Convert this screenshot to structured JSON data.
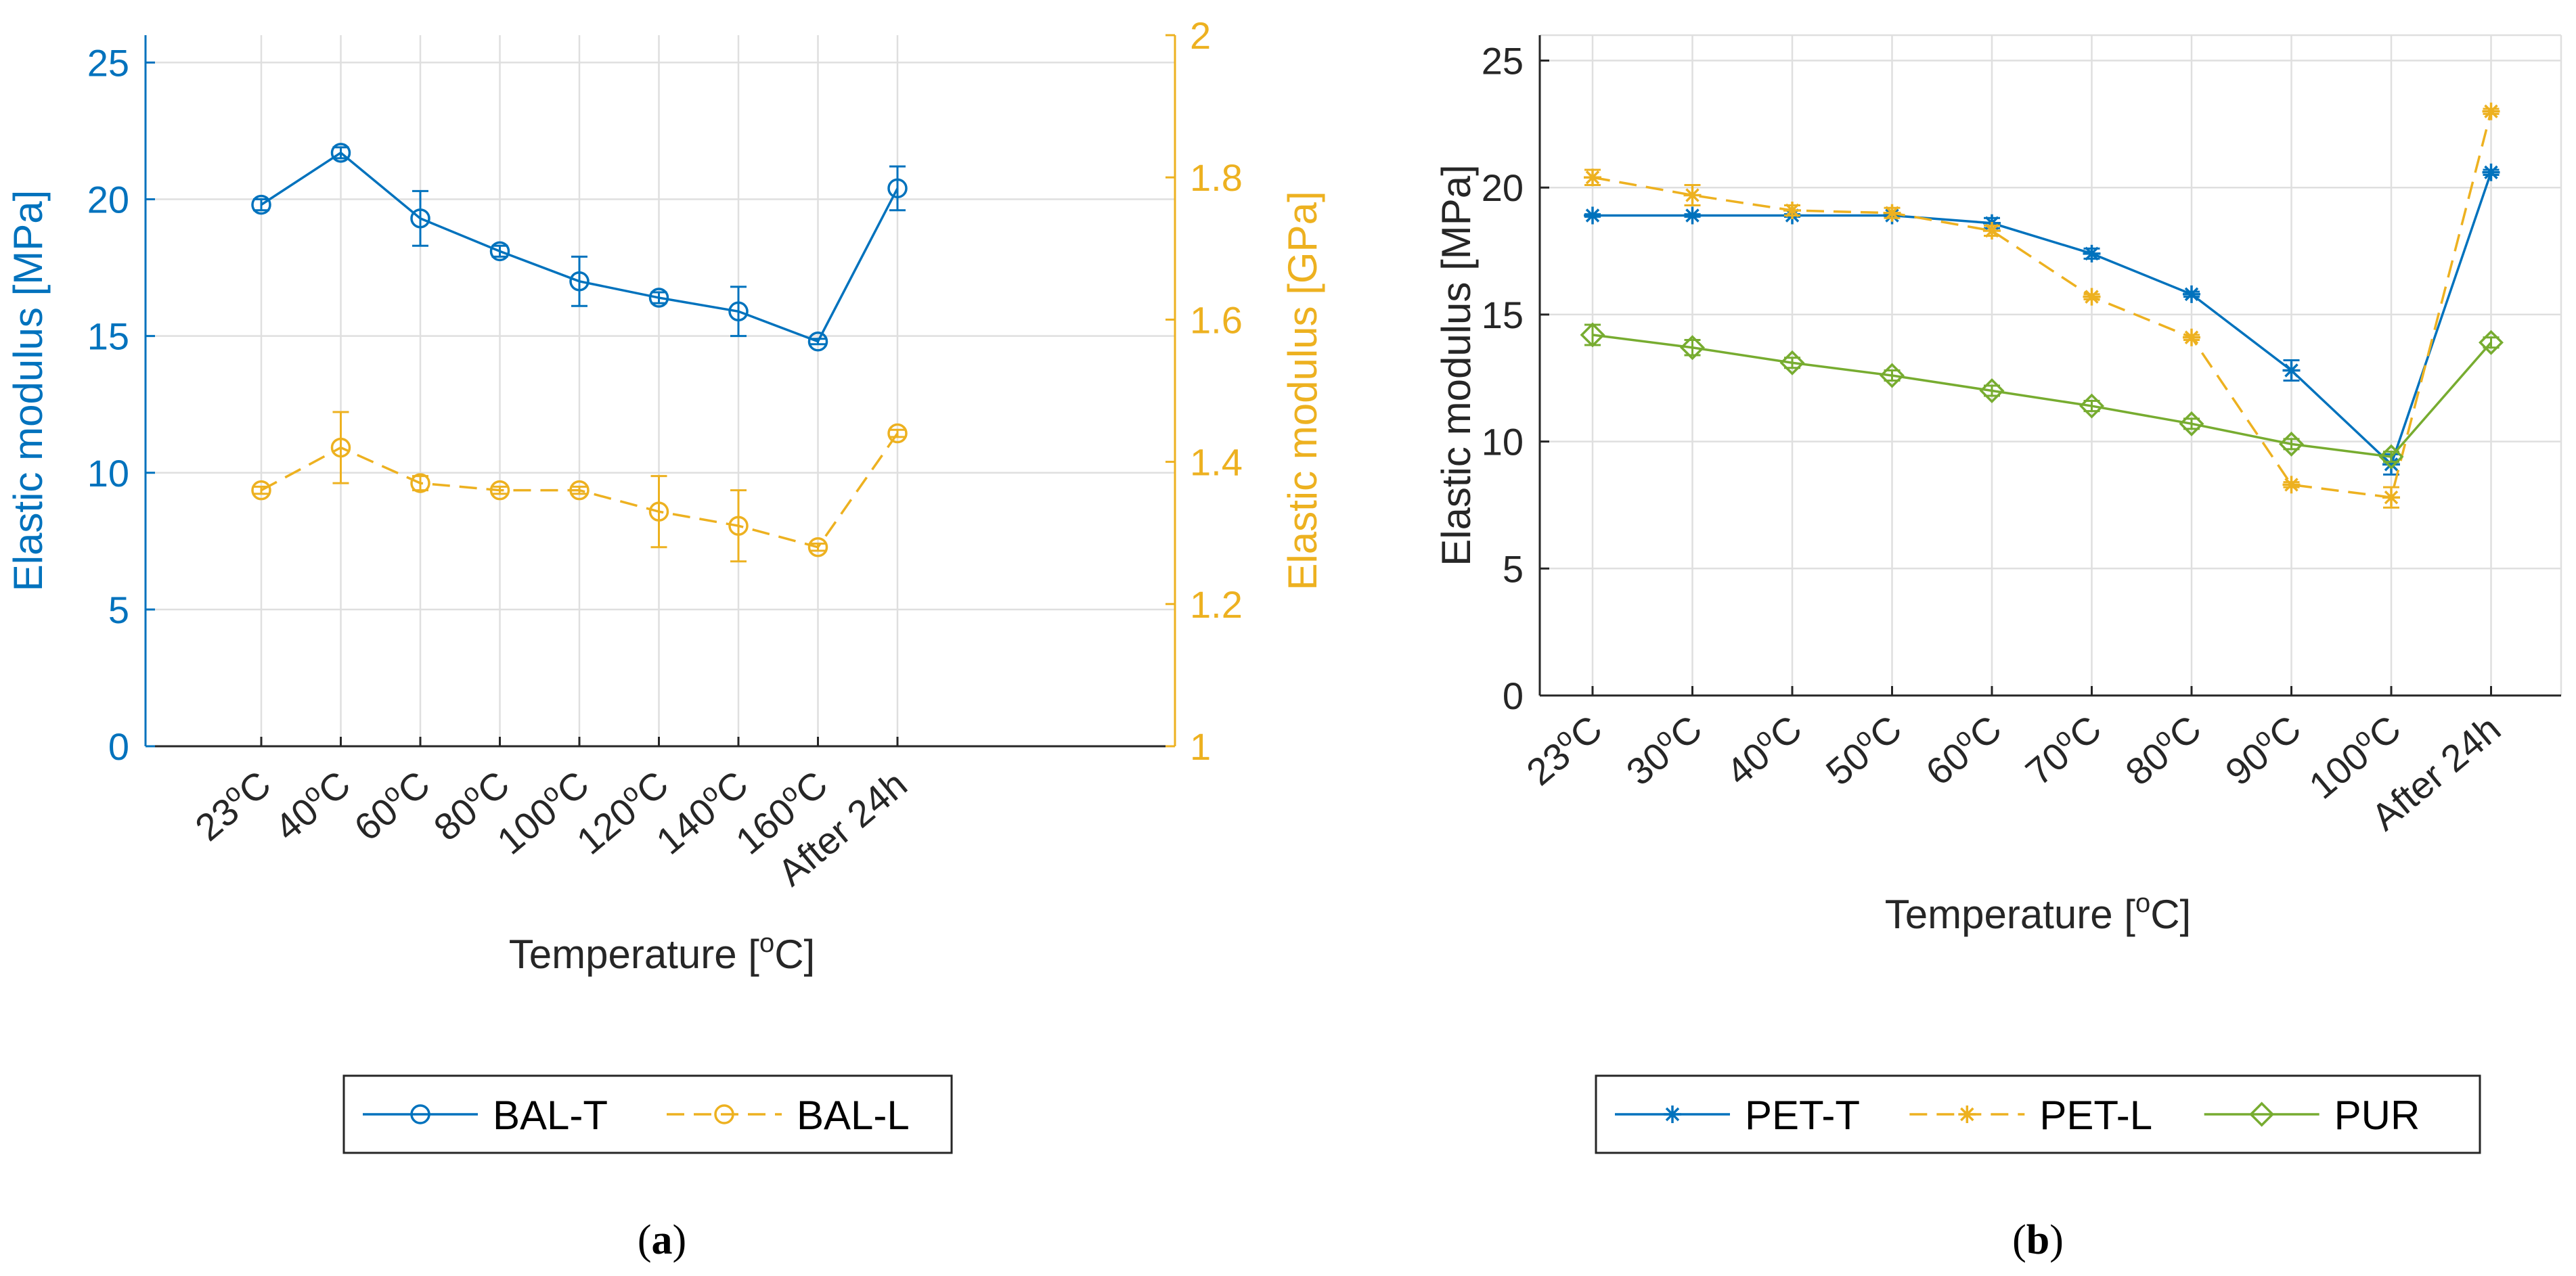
{
  "colors": {
    "blue": "#0072BD",
    "orange": "#EDB120",
    "green": "#77AC30",
    "axis": "#262626",
    "grid": "#DFDFDF",
    "caption": "#000000"
  },
  "chart_data": [
    {
      "id": "a",
      "type": "line",
      "caption": "(a)",
      "caption_letter": "a",
      "xlabel_main": "Temperature [",
      "xlabel_sup": "o",
      "xlabel_end": "C]",
      "ylabel_left": "Elastic modulus [MPa]",
      "ylabel_right": "Elastic modulus [GPa]",
      "ylim_left": [
        0,
        26
      ],
      "ylim_right": [
        1,
        2
      ],
      "yticks_left": [
        "0",
        "5",
        "10",
        "15",
        "20",
        "25"
      ],
      "yticks_left_values": [
        0,
        5,
        10,
        15,
        20,
        25
      ],
      "yticks_right": [
        "1",
        "1.2",
        "1.4",
        "1.6",
        "1.8",
        "2"
      ],
      "yticks_right_values": [
        1,
        1.2,
        1.4,
        1.6,
        1.8,
        2
      ],
      "categories": [
        {
          "num": "23",
          "sup": "o",
          "unit": "C"
        },
        {
          "num": "40",
          "sup": "o",
          "unit": "C"
        },
        {
          "num": "60",
          "sup": "o",
          "unit": "C"
        },
        {
          "num": "80",
          "sup": "o",
          "unit": "C"
        },
        {
          "num": "100",
          "sup": "o",
          "unit": "C"
        },
        {
          "num": "120",
          "sup": "o",
          "unit": "C"
        },
        {
          "num": "140",
          "sup": "o",
          "unit": "C"
        },
        {
          "num": "160",
          "sup": "o",
          "unit": "C"
        },
        {
          "num": "After 24h",
          "sup": "",
          "unit": ""
        }
      ],
      "series": [
        {
          "name": "BAL-T",
          "axis": "left",
          "color": "blue",
          "marker": "circle",
          "dash": "solid",
          "values": [
            19.8,
            21.7,
            19.3,
            18.1,
            17.0,
            16.4,
            15.9,
            14.8,
            20.4
          ],
          "errors": [
            0.2,
            0.2,
            1.0,
            0.2,
            0.9,
            0.2,
            0.9,
            0.1,
            0.8
          ]
        },
        {
          "name": "BAL-L",
          "axis": "right",
          "color": "orange",
          "marker": "circle",
          "dash": "dashed",
          "values": [
            1.36,
            1.42,
            1.37,
            1.36,
            1.36,
            1.33,
            1.31,
            1.28,
            1.44
          ],
          "errors": [
            0.005,
            0.05,
            0.01,
            0.005,
            0.005,
            0.05,
            0.05,
            0.005,
            0.005
          ]
        }
      ],
      "legend": [
        "BAL-T",
        "BAL-L"
      ]
    },
    {
      "id": "b",
      "type": "line",
      "caption": "(b)",
      "caption_letter": "b",
      "xlabel_main": "Temperature [",
      "xlabel_sup": "o",
      "xlabel_end": "C]",
      "ylabel_left": "Elastic modulus [MPa]",
      "ylim_left": [
        0,
        26
      ],
      "yticks_left": [
        "0",
        "5",
        "10",
        "15",
        "20",
        "25"
      ],
      "yticks_left_values": [
        0,
        5,
        10,
        15,
        20,
        25
      ],
      "categories": [
        {
          "num": "23",
          "sup": "o",
          "unit": "C"
        },
        {
          "num": "30",
          "sup": "o",
          "unit": "C"
        },
        {
          "num": "40",
          "sup": "o",
          "unit": "C"
        },
        {
          "num": "50",
          "sup": "o",
          "unit": "C"
        },
        {
          "num": "60",
          "sup": "o",
          "unit": "C"
        },
        {
          "num": "70",
          "sup": "o",
          "unit": "C"
        },
        {
          "num": "80",
          "sup": "o",
          "unit": "C"
        },
        {
          "num": "90",
          "sup": "o",
          "unit": "C"
        },
        {
          "num": "100",
          "sup": "o",
          "unit": "C"
        },
        {
          "num": "After 24h",
          "sup": "",
          "unit": ""
        }
      ],
      "series": [
        {
          "name": "PET-T",
          "axis": "left",
          "color": "blue",
          "marker": "asterisk",
          "dash": "solid",
          "values": [
            18.9,
            18.9,
            18.9,
            18.9,
            18.6,
            17.4,
            15.8,
            12.8,
            9.1,
            20.6
          ],
          "errors": [
            0.05,
            0.05,
            0.05,
            0.05,
            0.2,
            0.2,
            0.1,
            0.4,
            0.4,
            0.1
          ]
        },
        {
          "name": "PET-L",
          "axis": "left",
          "color": "orange",
          "marker": "asterisk",
          "dash": "dashed",
          "values": [
            20.4,
            19.7,
            19.1,
            19.0,
            18.3,
            15.7,
            14.1,
            8.3,
            7.8,
            23.0
          ],
          "errors": [
            0.3,
            0.4,
            0.2,
            0.2,
            0.2,
            0.1,
            0.1,
            0.1,
            0.4,
            0.1
          ]
        },
        {
          "name": "PUR",
          "axis": "left",
          "color": "green",
          "marker": "diamond",
          "dash": "solid",
          "values": [
            14.2,
            13.7,
            13.1,
            12.6,
            12.0,
            11.4,
            10.7,
            9.9,
            9.4,
            13.9
          ],
          "errors": [
            0.4,
            0.3,
            0.2,
            0.2,
            0.2,
            0.2,
            0.2,
            0.2,
            0.2,
            0.2
          ]
        }
      ],
      "legend": [
        "PET-T",
        "PET-L",
        "PUR"
      ]
    }
  ]
}
